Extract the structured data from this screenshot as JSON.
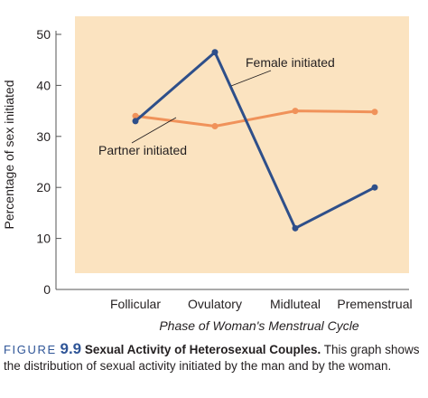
{
  "chart_data": {
    "type": "line",
    "categories": [
      "Follicular",
      "Ovulatory",
      "Midluteal",
      "Premenstrual"
    ],
    "series": [
      {
        "name": "Female initiated",
        "values": [
          33,
          46.5,
          12,
          20
        ],
        "color": "#2e4f8a"
      },
      {
        "name": "Partner initiated",
        "values": [
          34,
          32,
          35,
          34.8
        ],
        "color": "#f0925a"
      }
    ],
    "xlabel": "Phase of Woman's Menstrual Cycle",
    "ylabel": "Percentage of sex initiated",
    "ylim": [
      0,
      50
    ],
    "yticks": [
      0,
      10,
      20,
      30,
      40,
      50
    ],
    "background": "#fbe3c0",
    "legend": "direct labels"
  },
  "caption": {
    "figure_word": "FIGURE",
    "figure_number": "9.9",
    "title": "Sexual Activity of Heterosexual Couples.",
    "text": "This graph shows the distribution of sexual activity initiated by the man and by the woman."
  }
}
